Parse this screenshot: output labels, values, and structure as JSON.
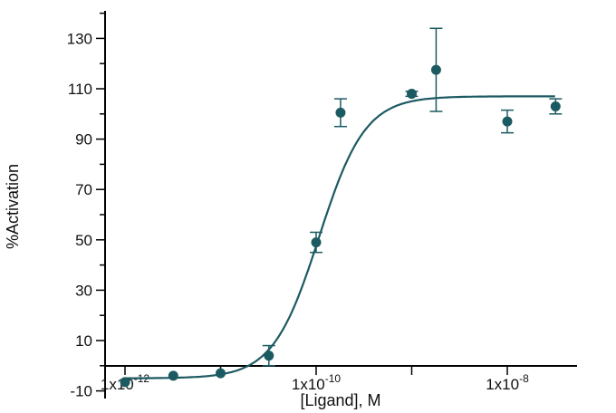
{
  "chart_data": {
    "type": "scatter",
    "title": "",
    "xlabel": "[Ligand], M",
    "ylabel": "%Activation",
    "x_scale": "log",
    "xlim": [
      6.3e-13,
      4.6e-08
    ],
    "ylim": [
      -14,
      140
    ],
    "grid": false,
    "legend": "none",
    "y_ticks": [
      -10,
      10,
      30,
      50,
      70,
      90,
      110,
      130
    ],
    "x_tick_labels": [
      {
        "value": 1e-12,
        "base": "1x10",
        "exp": "-12"
      },
      {
        "value": 1e-10,
        "base": "1x10",
        "exp": "-10"
      },
      {
        "value": 1e-08,
        "base": "1x10",
        "exp": "-8"
      }
    ],
    "series": [
      {
        "marker": "circle",
        "points": [
          {
            "x": 1e-12,
            "y": -6.5,
            "err": 0
          },
          {
            "x": 3.2e-12,
            "y": -4.0,
            "err": 0
          },
          {
            "x": 1e-11,
            "y": -3.0,
            "err": 0
          },
          {
            "x": 3.2e-11,
            "y": 4.0,
            "err": 4.0
          },
          {
            "x": 1e-10,
            "y": 49.0,
            "err": 4.0
          },
          {
            "x": 1.8e-10,
            "y": 100.5,
            "err": 5.5
          },
          {
            "x": 1e-09,
            "y": 108.0,
            "err": 1.0
          },
          {
            "x": 1.8e-09,
            "y": 117.5,
            "err": 16.5
          },
          {
            "x": 1e-08,
            "y": 97.0,
            "err": 4.5
          },
          {
            "x": 3.2e-08,
            "y": 103.0,
            "err": 3.0
          }
        ]
      }
    ],
    "fit_curve": {
      "bottom": -5,
      "top": 107,
      "log_ec50": -9.97,
      "hill": 1.8
    }
  },
  "colors": {
    "series": "#1c5a62",
    "axis": "#000000"
  }
}
